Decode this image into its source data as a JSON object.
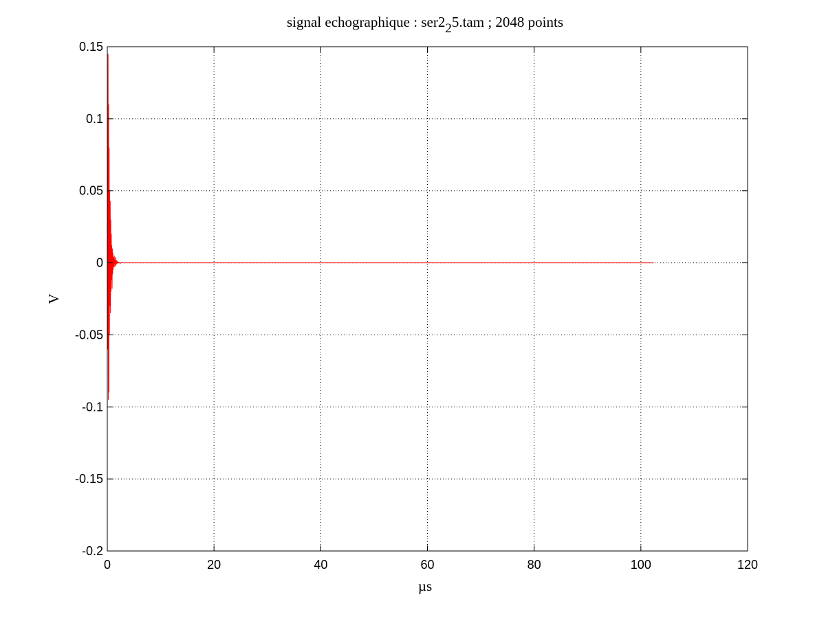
{
  "chart_data": {
    "type": "line",
    "title": {
      "prefix": "signal echographique : ser2",
      "subscript": "2",
      "suffix": "5.tam ; 2048 points"
    },
    "xlabel": "µs",
    "ylabel": "V",
    "xlim": [
      0,
      120
    ],
    "ylim": [
      -0.2,
      0.15
    ],
    "xticks": [
      0,
      20,
      40,
      60,
      80,
      100,
      120
    ],
    "xtick_labels": [
      "0",
      "20",
      "40",
      "60",
      "80",
      "100",
      "120"
    ],
    "yticks": [
      0.15,
      0.1,
      0.05,
      0,
      -0.05,
      -0.1,
      -0.15,
      -0.2
    ],
    "ytick_labels": [
      "0.15",
      "0.1",
      "0.05",
      "0",
      "-0.05",
      "-0.1",
      "-0.15",
      "-0.2"
    ],
    "grid": true,
    "line_color": "#ff0000",
    "series": [
      {
        "x": [
          0,
          0.05,
          0.1,
          0.15,
          0.2,
          0.25,
          0.3,
          0.35,
          0.4,
          0.45,
          0.5,
          0.55,
          0.6,
          0.65,
          0.7,
          0.75,
          0.8,
          0.85,
          0.9,
          0.95,
          1.0,
          1.05,
          1.1,
          1.15,
          1.2,
          1.3,
          1.4,
          1.5,
          1.6,
          1.7,
          1.8,
          1.9,
          2.0,
          2.2,
          2.4,
          2.6,
          3.0,
          4.0,
          102.4
        ],
        "y": [
          0,
          0.02,
          -0.06,
          0.145,
          -0.095,
          0.11,
          -0.09,
          0.08,
          -0.05,
          0.05,
          -0.03,
          0.043,
          -0.035,
          0.03,
          -0.02,
          0.02,
          -0.012,
          0.012,
          -0.018,
          0.01,
          -0.008,
          0.007,
          -0.005,
          0.004,
          -0.003,
          0.005,
          -0.003,
          0.004,
          -0.002,
          0.002,
          -0.001,
          0.001,
          0,
          0.0005,
          -0.0005,
          0.0002,
          0,
          0,
          0
        ]
      }
    ]
  }
}
